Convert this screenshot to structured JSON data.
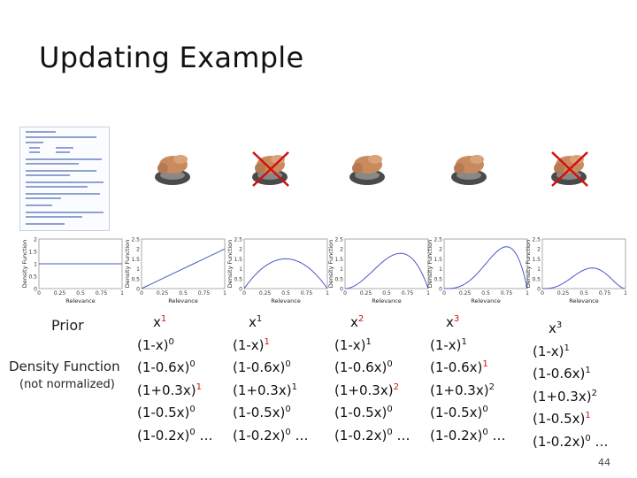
{
  "slide": {
    "title": "Updating Example",
    "page_number": "44"
  },
  "labels": {
    "prior": "Prior",
    "density_function": "Density Function",
    "not_normalized": "(not normalized)"
  },
  "chart_common": {
    "ylabel": "Density Function",
    "xlabel": "Relevance",
    "x_ticks": [
      "0",
      "0.25",
      "0.5",
      "0.75",
      "1"
    ],
    "color": "#4a57c8"
  },
  "feedback_icons": [
    {
      "icon": "hand-press-icon",
      "crossed": false
    },
    {
      "icon": "hand-press-icon",
      "crossed": true
    },
    {
      "icon": "hand-press-icon",
      "crossed": false
    },
    {
      "icon": "hand-press-icon",
      "crossed": false
    },
    {
      "icon": "hand-press-icon",
      "crossed": true
    }
  ],
  "chart_data": [
    {
      "type": "line",
      "name": "prior",
      "ylim": [
        0,
        2
      ],
      "y_ticks": [
        "0",
        "0.5",
        "1",
        "1.5",
        "2"
      ],
      "formula": "1",
      "x": [
        0,
        0.25,
        0.5,
        0.75,
        1
      ],
      "y": [
        1,
        1,
        1,
        1,
        1
      ]
    },
    {
      "type": "line",
      "ylim": [
        0,
        2.5
      ],
      "y_ticks": [
        "0",
        "0.5",
        "1",
        "1.5",
        "2",
        "2.5"
      ],
      "formula": "2x",
      "x": [
        0,
        0.25,
        0.5,
        0.75,
        1
      ],
      "y": [
        0,
        0.5,
        1,
        1.5,
        2
      ]
    },
    {
      "type": "line",
      "ylim": [
        0,
        2.5
      ],
      "y_ticks": [
        "0",
        "0.5",
        "1",
        "1.5",
        "2",
        "2.5"
      ],
      "formula": "6x(1-x)",
      "x": [
        0,
        0.25,
        0.5,
        0.75,
        1
      ],
      "y": [
        0,
        1.125,
        1.5,
        1.125,
        0
      ]
    },
    {
      "type": "line",
      "ylim": [
        0,
        2.5
      ],
      "y_ticks": [
        "0",
        "0.5",
        "1",
        "1.5",
        "2",
        "2.5"
      ],
      "formula": "12x^2(1-x)",
      "x": [
        0,
        0.25,
        0.5,
        0.667,
        0.75,
        1
      ],
      "y": [
        0,
        0.5625,
        1.5,
        1.78,
        1.6875,
        0
      ]
    },
    {
      "type": "line",
      "ylim": [
        0,
        2.5
      ],
      "y_ticks": [
        "0",
        "0.5",
        "1",
        "1.5",
        "2",
        "2.5"
      ],
      "formula": "20x^3(1-x)",
      "x": [
        0,
        0.25,
        0.5,
        0.75,
        1
      ],
      "y": [
        0,
        0.234,
        1.25,
        2.11,
        0
      ]
    },
    {
      "type": "line",
      "ylim": [
        0,
        2.5
      ],
      "y_ticks": [
        "0",
        "0.5",
        "1",
        "1.5",
        "2",
        "2.5"
      ],
      "formula": "30x^3(1-x)^2",
      "x": [
        0,
        0.25,
        0.5,
        0.6,
        0.75,
        1
      ],
      "y": [
        0,
        0.264,
        0.9375,
        1.037,
        0.791,
        0
      ]
    }
  ],
  "columns": [
    {
      "x_exp": "1",
      "x_exp_red": true,
      "rows": [
        [
          "(1-x)",
          "0",
          false
        ],
        [
          "(1-0.6x)",
          "0",
          false
        ],
        [
          "(1+0.3x)",
          "1",
          true
        ],
        [
          "(1-0.5x)",
          "0",
          false
        ],
        [
          "(1-0.2x)",
          "0 …",
          false
        ]
      ]
    },
    {
      "x_exp": "1",
      "x_exp_red": false,
      "rows": [
        [
          "(1-x)",
          "1",
          true
        ],
        [
          "(1-0.6x)",
          "0",
          false
        ],
        [
          "(1+0.3x)",
          "1",
          false
        ],
        [
          "(1-0.5x)",
          "0",
          false
        ],
        [
          "(1-0.2x)",
          "0 …",
          false
        ]
      ]
    },
    {
      "x_exp": "2",
      "x_exp_red": true,
      "rows": [
        [
          "(1-x)",
          "1",
          false
        ],
        [
          "(1-0.6x)",
          "0",
          false
        ],
        [
          "(1+0.3x)",
          "2",
          true
        ],
        [
          "(1-0.5x)",
          "0",
          false
        ],
        [
          "(1-0.2x)",
          "0 …",
          false
        ]
      ]
    },
    {
      "x_exp": "3",
      "x_exp_red": true,
      "rows": [
        [
          "(1-x)",
          "1",
          false
        ],
        [
          "(1-0.6x)",
          "1",
          true
        ],
        [
          "(1+0.3x)",
          "2",
          false
        ],
        [
          "(1-0.5x)",
          "0",
          false
        ],
        [
          "(1-0.2x)",
          "0 …",
          false
        ]
      ]
    },
    {
      "x_exp": "3",
      "x_exp_red": false,
      "rows": [
        [
          "(1-x)",
          "1",
          false
        ],
        [
          "(1-0.6x)",
          "1",
          false
        ],
        [
          "(1+0.3x)",
          "2",
          false
        ],
        [
          "(1-0.5x)",
          "1",
          true
        ],
        [
          "(1-0.2x)",
          "0 …",
          false
        ]
      ]
    }
  ]
}
